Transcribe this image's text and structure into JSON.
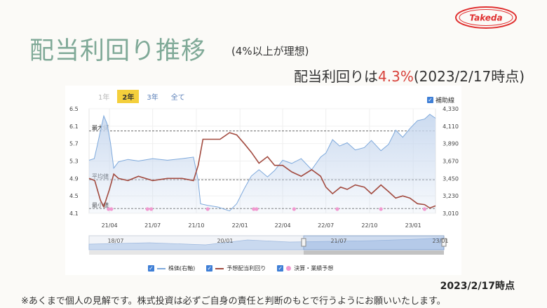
{
  "page": {
    "title": "配当利回り推移",
    "subtitle": "(4%以上が理想)",
    "yield_prefix": "配当利回りは",
    "yield_value": "4.3%",
    "yield_suffix": "(2023/2/17時点)",
    "logo_text": "Takeda",
    "asof": "2023/2/17時点",
    "disclaimer": "※あくまで個人の見解です。株式投資は必ずご自身の責任と判断のもとで行うようにお願いいたします。"
  },
  "chart_ui": {
    "tabs": [
      {
        "label": "1年",
        "state": "disabled"
      },
      {
        "label": "2年",
        "state": "active"
      },
      {
        "label": "3年",
        "state": "normal"
      },
      {
        "label": "全て",
        "state": "normal"
      }
    ],
    "aux_line_label": "補助線",
    "navigator_labels": [
      "18/07",
      "20/01",
      "21/07",
      "23/01"
    ]
  },
  "chart_data": {
    "type": "line",
    "x_tick_labels": [
      "21/04",
      "21/07",
      "21/10",
      "22/01",
      "22/04",
      "22/07",
      "22/10",
      "23/01"
    ],
    "x_start": "2021-02-17",
    "x_end": "2023-02-17",
    "left_axis": {
      "ticks": [
        "6.5",
        "6.1",
        "5.7",
        "5.3",
        "4.9",
        "4.5",
        "4.1"
      ],
      "range": [
        4.1,
        6.5
      ]
    },
    "right_axis": {
      "ticks": [
        "4,330",
        "4,110",
        "3,890",
        "3,670",
        "3,450",
        "3,230",
        "3,010"
      ],
      "range": [
        3010,
        4330
      ]
    },
    "reference_lines": [
      {
        "label": "最大値",
        "value": 5.99
      },
      {
        "label": "平均値",
        "value": 4.87
      },
      {
        "label": "最小値",
        "value": 4.21
      }
    ],
    "series": [
      {
        "name": "株価(右軸)",
        "axis": "right",
        "color": "#7ea9dc",
        "fill": "#c9d9ef",
        "points": [
          [
            "2021-02-17",
            3680
          ],
          [
            "2021-02-28",
            3700
          ],
          [
            "2021-03-06",
            3860
          ],
          [
            "2021-03-13",
            4050
          ],
          [
            "2021-03-20",
            4240
          ],
          [
            "2021-03-27",
            4140
          ],
          [
            "2021-04-03",
            3900
          ],
          [
            "2021-04-10",
            3580
          ],
          [
            "2021-04-20",
            3660
          ],
          [
            "2021-05-10",
            3690
          ],
          [
            "2021-06-01",
            3670
          ],
          [
            "2021-07-01",
            3700
          ],
          [
            "2021-08-01",
            3680
          ],
          [
            "2021-09-01",
            3700
          ],
          [
            "2021-09-25",
            3720
          ],
          [
            "2021-10-05",
            3420
          ],
          [
            "2021-10-10",
            3130
          ],
          [
            "2021-10-25",
            3110
          ],
          [
            "2021-11-15",
            3090
          ],
          [
            "2021-12-10",
            3040
          ],
          [
            "2021-12-25",
            3130
          ],
          [
            "2022-01-10",
            3320
          ],
          [
            "2022-01-25",
            3480
          ],
          [
            "2022-02-10",
            3560
          ],
          [
            "2022-02-28",
            3470
          ],
          [
            "2022-03-15",
            3550
          ],
          [
            "2022-04-01",
            3680
          ],
          [
            "2022-04-20",
            3640
          ],
          [
            "2022-05-10",
            3700
          ],
          [
            "2022-06-01",
            3560
          ],
          [
            "2022-06-20",
            3720
          ],
          [
            "2022-07-01",
            3770
          ],
          [
            "2022-07-15",
            3940
          ],
          [
            "2022-07-30",
            3860
          ],
          [
            "2022-08-15",
            3900
          ],
          [
            "2022-09-01",
            3810
          ],
          [
            "2022-09-20",
            3840
          ],
          [
            "2022-10-05",
            3930
          ],
          [
            "2022-10-25",
            3800
          ],
          [
            "2022-11-10",
            3880
          ],
          [
            "2022-11-25",
            4060
          ],
          [
            "2022-12-10",
            3970
          ],
          [
            "2022-12-25",
            4080
          ],
          [
            "2023-01-10",
            4180
          ],
          [
            "2023-01-25",
            4200
          ],
          [
            "2023-02-05",
            4260
          ],
          [
            "2023-02-17",
            4210
          ]
        ]
      },
      {
        "name": "予想配当利回り",
        "axis": "left",
        "color": "#a24a3f",
        "points": [
          [
            "2021-02-17",
            4.9
          ],
          [
            "2021-03-01",
            4.85
          ],
          [
            "2021-03-13",
            4.4
          ],
          [
            "2021-03-20",
            4.25
          ],
          [
            "2021-04-01",
            4.65
          ],
          [
            "2021-04-10",
            5.0
          ],
          [
            "2021-04-20",
            4.9
          ],
          [
            "2021-05-10",
            4.85
          ],
          [
            "2021-06-01",
            4.95
          ],
          [
            "2021-07-01",
            4.85
          ],
          [
            "2021-08-01",
            4.9
          ],
          [
            "2021-09-01",
            4.9
          ],
          [
            "2021-09-25",
            4.85
          ],
          [
            "2021-10-05",
            5.2
          ],
          [
            "2021-10-15",
            5.8
          ],
          [
            "2021-11-01",
            5.8
          ],
          [
            "2021-11-20",
            5.8
          ],
          [
            "2021-12-10",
            5.95
          ],
          [
            "2021-12-25",
            5.9
          ],
          [
            "2022-01-10",
            5.7
          ],
          [
            "2022-01-25",
            5.5
          ],
          [
            "2022-02-10",
            5.25
          ],
          [
            "2022-02-28",
            5.4
          ],
          [
            "2022-03-15",
            5.2
          ],
          [
            "2022-04-01",
            5.2
          ],
          [
            "2022-04-20",
            5.05
          ],
          [
            "2022-05-10",
            4.95
          ],
          [
            "2022-06-01",
            5.1
          ],
          [
            "2022-06-20",
            4.95
          ],
          [
            "2022-07-01",
            4.7
          ],
          [
            "2022-07-15",
            4.55
          ],
          [
            "2022-08-01",
            4.7
          ],
          [
            "2022-08-15",
            4.65
          ],
          [
            "2022-09-01",
            4.75
          ],
          [
            "2022-09-20",
            4.7
          ],
          [
            "2022-10-05",
            4.55
          ],
          [
            "2022-10-25",
            4.75
          ],
          [
            "2022-11-10",
            4.6
          ],
          [
            "2022-11-25",
            4.45
          ],
          [
            "2022-12-10",
            4.5
          ],
          [
            "2022-12-25",
            4.45
          ],
          [
            "2023-01-10",
            4.32
          ],
          [
            "2023-01-25",
            4.3
          ],
          [
            "2023-02-05",
            4.22
          ],
          [
            "2023-02-17",
            4.27
          ]
        ]
      }
    ],
    "events": {
      "name": "決算・業績予想",
      "color": "#f19ad0",
      "dates": [
        "2021-03-30",
        "2021-04-05",
        "2021-06-20",
        "2021-06-28",
        "2021-10-25",
        "2022-01-30",
        "2022-02-05",
        "2022-04-25",
        "2022-07-25",
        "2022-10-25",
        "2023-01-25"
      ]
    }
  }
}
